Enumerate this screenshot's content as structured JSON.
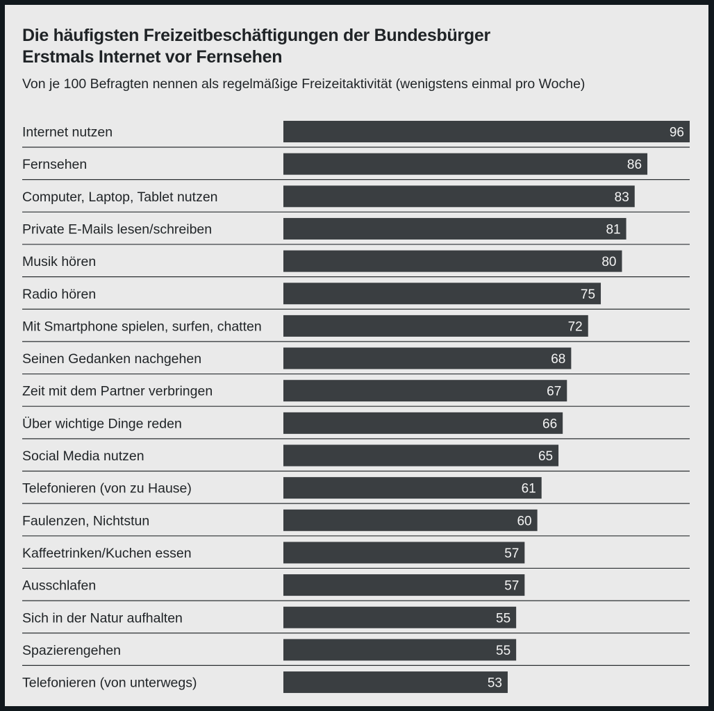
{
  "colors": {
    "bar": "#3a3e41",
    "background": "#eaeaea",
    "frame": "#11181d",
    "value_text": "#f4f4f4"
  },
  "chart_data": {
    "type": "bar",
    "orientation": "horizontal",
    "title": "Die häufigsten Freizeitbeschäftigungen der Bundesbürger",
    "subtitle": "Erstmals Internet vor Fernsehen",
    "note": "Von je 100 Befragten nennen als regelmäßige Freizeitaktivität (wenigstens einmal pro Woche)",
    "categories": [
      "Internet nutzen",
      "Fernsehen",
      "Computer, Laptop, Tablet nutzen",
      "Private E-Mails lesen/schreiben",
      "Musik hören",
      "Radio hören",
      "Mit Smartphone spielen, surfen, chatten",
      "Seinen Gedanken nachgehen",
      "Zeit mit dem Partner verbringen",
      "Über wichtige Dinge reden",
      "Social Media nutzen",
      "Telefonieren (von zu Hause)",
      "Faulenzen, Nichtstun",
      "Kaffeetrinken/Kuchen essen",
      "Ausschlafen",
      "Sich in der Natur aufhalten",
      "Spazierengehen",
      "Telefonieren (von unterwegs)"
    ],
    "values": [
      96,
      86,
      83,
      81,
      80,
      75,
      72,
      68,
      67,
      66,
      65,
      61,
      60,
      57,
      57,
      55,
      55,
      53
    ],
    "xlim": [
      0,
      96
    ],
    "grid": false,
    "legend": false
  }
}
